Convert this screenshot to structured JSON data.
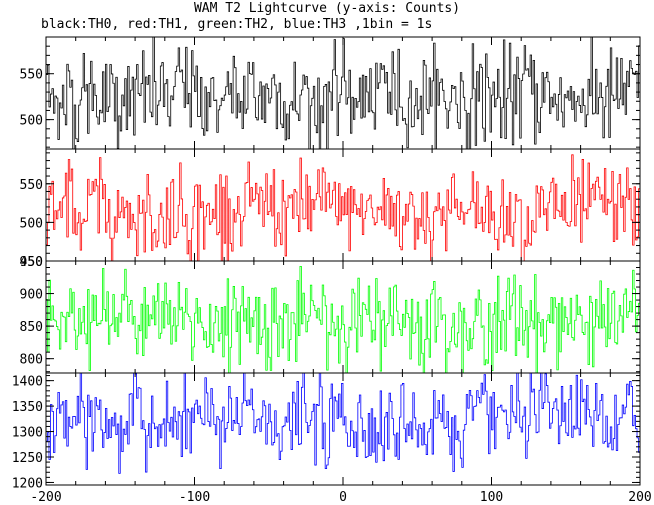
{
  "chart_data": {
    "type": "line",
    "title": "WAM T2 Lightcurve (y-axis: Counts)",
    "subtitle": "black:TH0, red:TH1, green:TH2, blue:TH3 ,1bin = 1s",
    "xlabel": "",
    "ylabel": "",
    "xlim": [
      -200,
      200
    ],
    "x_ticks": [
      -200,
      -100,
      0,
      100,
      200
    ],
    "grid": false,
    "legend": "none",
    "panels": [
      {
        "name": "TH0",
        "color": "#000000",
        "ylim": [
          468,
          590
        ],
        "y_ticks": [
          500,
          550
        ],
        "mean": 525,
        "amplitude": 26,
        "variability": 0.1
      },
      {
        "name": "TH1",
        "color": "#ff0000",
        "ylim": [
          450,
          595
        ],
        "y_ticks": [
          450,
          500,
          550
        ],
        "mean": 515,
        "amplitude": 28,
        "variability": 0.1
      },
      {
        "name": "TH2",
        "color": "#00ff00",
        "ylim": [
          778,
          950
        ],
        "y_ticks": [
          800,
          850,
          900,
          950
        ],
        "mean": 858,
        "amplitude": 34,
        "variability": 0.1
      },
      {
        "name": "TH3",
        "color": "#0000ff",
        "ylim": [
          1195,
          1415
        ],
        "y_ticks": [
          1200,
          1250,
          1300,
          1350,
          1400
        ],
        "mean": 1318,
        "amplitude": 42,
        "variability": 0.1
      }
    ]
  }
}
